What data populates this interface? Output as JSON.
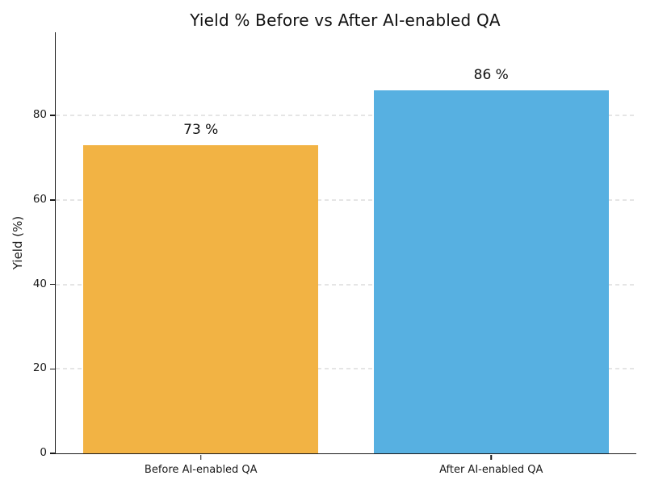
{
  "chart_data": {
    "type": "bar",
    "title": "Yield % Before vs After AI-enabled QA",
    "xlabel": "",
    "ylabel": "Yield (%)",
    "categories": [
      "Before AI-enabled QA",
      "After AI-enabled QA"
    ],
    "values": [
      73,
      86
    ],
    "bar_labels": [
      "73 %",
      "86 %"
    ],
    "bar_colors": [
      "#F2B344",
      "#57B0E1"
    ],
    "yticks": [
      0,
      20,
      40,
      60,
      80
    ],
    "ylim": [
      0,
      99.7
    ],
    "grid": "horizontal dashed gridlines at 20, 40, 60, 80",
    "gridline_color": "#cbcbcb",
    "legend": "none",
    "bar_width_fraction": 0.8
  }
}
